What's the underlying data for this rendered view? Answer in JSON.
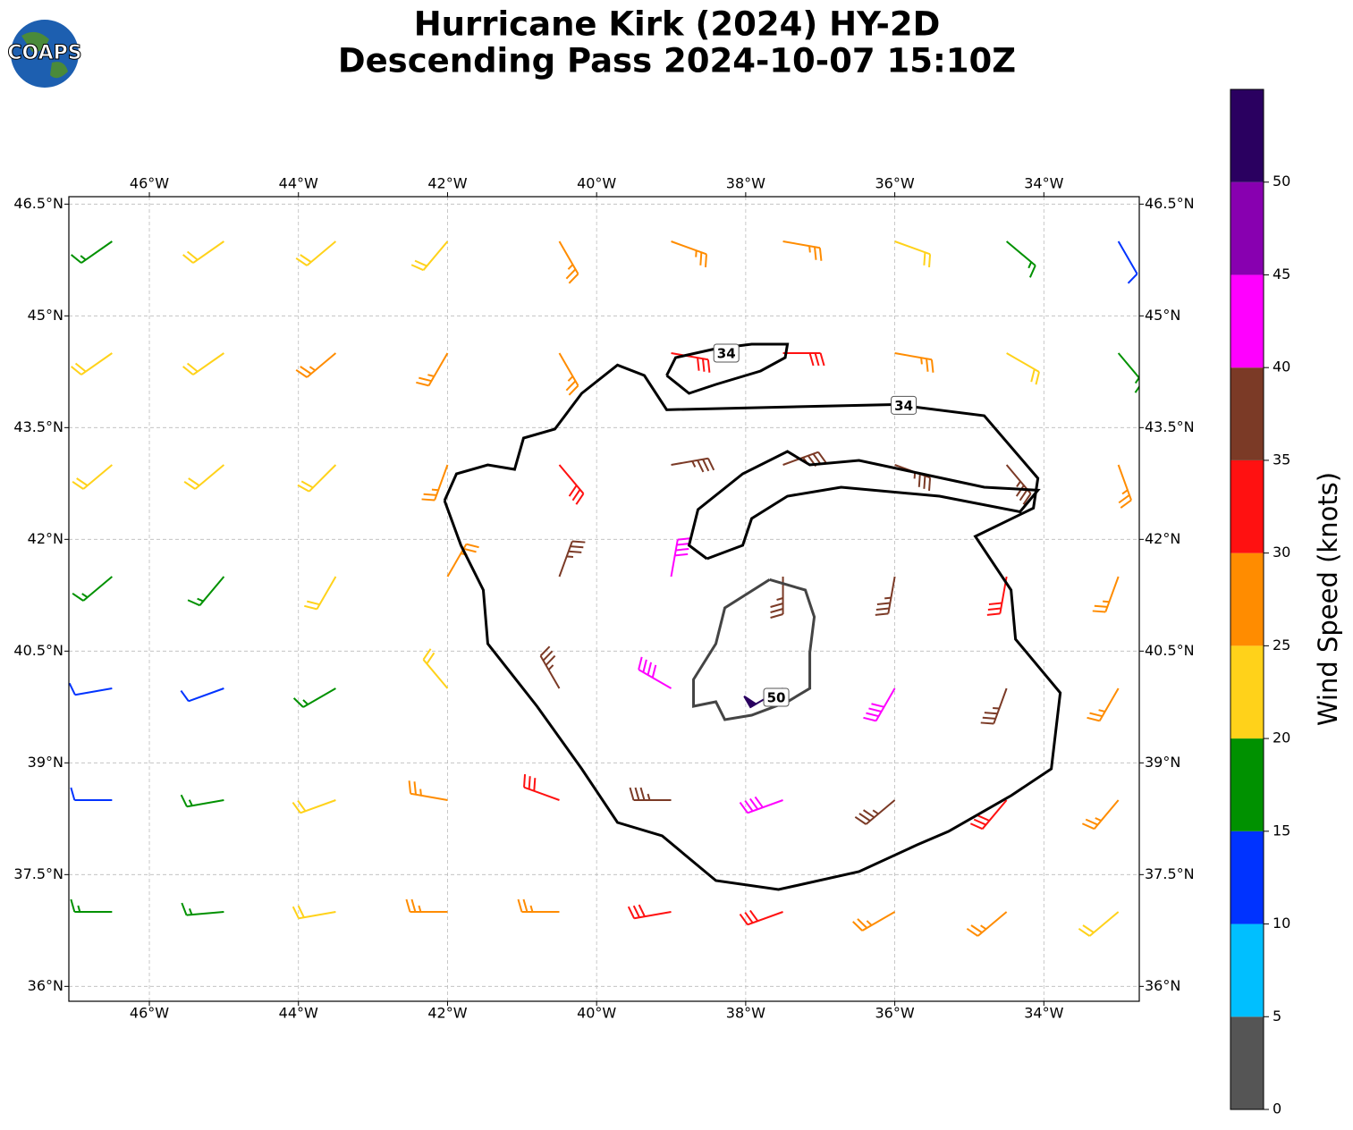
{
  "logo": "COAPS",
  "chart_data": {
    "type": "barbs",
    "title": "Hurricane Kirk (2024) HY-2D",
    "subtitle": "Descending Pass 2024-10-07 15:10Z",
    "xlim": [
      -47.08,
      -32.72
    ],
    "ylim": [
      35.8,
      46.6
    ],
    "xticks": [
      {
        "value": -46,
        "label": "46°W"
      },
      {
        "value": -44,
        "label": "44°W"
      },
      {
        "value": -42,
        "label": "42°W"
      },
      {
        "value": -40,
        "label": "40°W"
      },
      {
        "value": -38,
        "label": "38°W"
      },
      {
        "value": -36,
        "label": "36°W"
      },
      {
        "value": -34,
        "label": "34°W"
      }
    ],
    "yticks": [
      {
        "value": 36,
        "label": "36°N"
      },
      {
        "value": 37.5,
        "label": "37.5°N"
      },
      {
        "value": 39,
        "label": "39°N"
      },
      {
        "value": 40.5,
        "label": "40.5°N"
      },
      {
        "value": 42,
        "label": "42°N"
      },
      {
        "value": 43.5,
        "label": "43.5°N"
      },
      {
        "value": 45,
        "label": "45°N"
      },
      {
        "value": 46.5,
        "label": "46.5°N"
      }
    ],
    "grid": true,
    "barbs": {
      "lon": [
        -46.5,
        -45,
        -43.5,
        -42,
        -40.5,
        -39,
        -37.5,
        -36,
        -34.5,
        -33
      ],
      "lat": [
        46,
        44.5,
        43,
        41.5,
        40,
        38.5,
        37
      ],
      "speed": [
        [
          18,
          22,
          23,
          24,
          26,
          27,
          27,
          23,
          18,
          14
        ],
        [
          22,
          23,
          25,
          27,
          29,
          32,
          33,
          28,
          22,
          18
        ],
        [
          22,
          23,
          24,
          28,
          34,
          37,
          38,
          36,
          37,
          27
        ],
        [
          18,
          19,
          22,
          28,
          38,
          42,
          37,
          38,
          33,
          28
        ],
        [
          12,
          13,
          18,
          24,
          38,
          43,
          52,
          44,
          37,
          28
        ],
        [
          14,
          17,
          22,
          27,
          33,
          38,
          43,
          39,
          33,
          27
        ],
        [
          17,
          19,
          23,
          26,
          29,
          32,
          33,
          29,
          27,
          24
        ]
      ],
      "direction": [
        [
          235,
          235,
          230,
          220,
          150,
          110,
          100,
          110,
          130,
          150
        ],
        [
          235,
          235,
          230,
          210,
          150,
          100,
          90,
          100,
          120,
          140
        ],
        [
          230,
          230,
          225,
          200,
          140,
          80,
          70,
          110,
          140,
          160
        ],
        [
          230,
          220,
          210,
          30,
          20,
          10,
          180,
          190,
          190,
          200
        ],
        [
          260,
          250,
          240,
          320,
          330,
          300,
          240,
          210,
          200,
          210
        ],
        [
          270,
          260,
          250,
          280,
          290,
          270,
          250,
          230,
          220,
          220
        ],
        [
          270,
          265,
          260,
          270,
          270,
          260,
          250,
          240,
          230,
          230
        ]
      ]
    },
    "contours": [
      {
        "level": 34,
        "color": "#000000",
        "label_at": [
          -35.88,
          43.8
        ],
        "lon": [
          -42.04,
          -41.88,
          -41.46,
          -41.1,
          -40.98,
          -40.56,
          -40.2,
          -39.72,
          -39.36,
          -39.06,
          -36.0,
          -34.8,
          -34.08,
          -34.14,
          -34.92,
          -34.44,
          -34.38,
          -33.78,
          -33.9,
          -34.44,
          -35.28,
          -35.7,
          -36.48,
          -37.56,
          -38.4,
          -39.12,
          -39.72,
          -40.2,
          -40.8,
          -41.46,
          -41.52,
          -41.82,
          -42.04
        ],
        "lat": [
          42.52,
          42.88,
          43.0,
          42.94,
          43.36,
          43.48,
          43.96,
          44.34,
          44.2,
          43.74,
          43.81,
          43.66,
          42.82,
          42.42,
          42.04,
          41.32,
          40.66,
          39.94,
          38.92,
          38.56,
          38.08,
          37.9,
          37.54,
          37.3,
          37.42,
          38.02,
          38.2,
          38.92,
          39.76,
          40.6,
          41.32,
          41.92,
          42.52
        ]
      },
      {
        "level": 34,
        "color": "#000000",
        "label_at": [
          -38.26,
          44.5
        ],
        "lon": [
          -39.06,
          -38.94,
          -38.4,
          -37.92,
          -37.44,
          -37.47,
          -37.8,
          -38.4,
          -38.76,
          -39.06
        ],
        "lat": [
          44.2,
          44.44,
          44.56,
          44.62,
          44.62,
          44.44,
          44.26,
          44.08,
          43.96,
          44.2
        ]
      },
      {
        "level": 34,
        "color": "#000000",
        "label_at": null,
        "lon": [
          -38.52,
          -38.76,
          -38.64,
          -38.04,
          -37.44,
          -37.14,
          -36.48,
          -35.64,
          -34.8,
          -34.08,
          -34.32,
          -35.4,
          -36.72,
          -37.44,
          -37.92,
          -38.04,
          -38.52
        ],
        "lat": [
          41.74,
          41.92,
          42.4,
          42.88,
          43.18,
          43.0,
          43.06,
          42.88,
          42.7,
          42.66,
          42.37,
          42.58,
          42.7,
          42.58,
          42.28,
          41.92,
          41.74
        ]
      },
      {
        "level": 50,
        "color": "#444444",
        "label_at": [
          -37.59,
          39.88
        ],
        "lon": [
          -37.68,
          -37.2,
          -37.08,
          -37.14,
          -37.14,
          -37.44,
          -37.92,
          -38.28,
          -38.4,
          -38.7,
          -38.7,
          -38.4,
          -38.28,
          -37.68
        ],
        "lat": [
          41.46,
          41.32,
          40.96,
          40.48,
          40.0,
          39.82,
          39.64,
          39.58,
          39.82,
          39.76,
          40.12,
          40.6,
          41.08,
          41.46
        ]
      }
    ],
    "colorbar": {
      "label": "Wind Speed (knots)",
      "clim": [
        0,
        55
      ],
      "ticks": [
        0,
        5,
        10,
        15,
        20,
        25,
        30,
        35,
        40,
        45,
        50
      ],
      "colors": [
        "#555555",
        "#00bfff",
        "#0033ff",
        "#009100",
        "#ffd21a",
        "#ff8c00",
        "#ff1111",
        "#7b3a26",
        "#ff00ff",
        "#8800b0",
        "#2a0060"
      ]
    }
  }
}
